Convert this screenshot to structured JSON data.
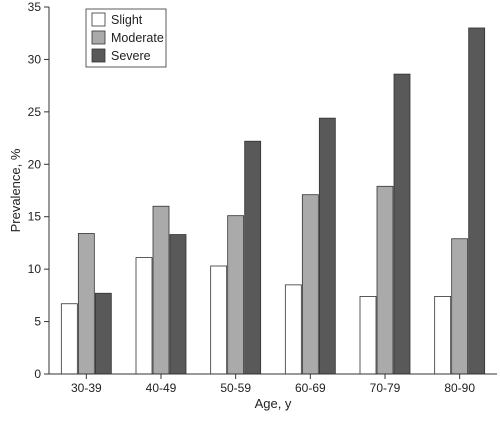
{
  "chart_data": {
    "type": "bar",
    "title": "",
    "xlabel": "Age, y",
    "ylabel": "Prevalence, %",
    "ylim": [
      0,
      35
    ],
    "yticks": [
      0,
      5,
      10,
      15,
      20,
      25,
      30,
      35
    ],
    "categories": [
      "30-39",
      "40-49",
      "50-59",
      "60-69",
      "70-79",
      "80-90"
    ],
    "series": [
      {
        "name": "Slight",
        "color": "#ffffff",
        "values": [
          6.7,
          11.1,
          10.3,
          8.5,
          7.4,
          7.4
        ]
      },
      {
        "name": "Moderate",
        "color": "#aaaaaa",
        "values": [
          13.4,
          16.0,
          15.1,
          17.1,
          17.9,
          12.9
        ]
      },
      {
        "name": "Severe",
        "color": "#595959",
        "values": [
          7.7,
          13.3,
          22.2,
          24.4,
          28.6,
          33.0
        ]
      }
    ],
    "grid": false,
    "legend_position": "top-left"
  }
}
